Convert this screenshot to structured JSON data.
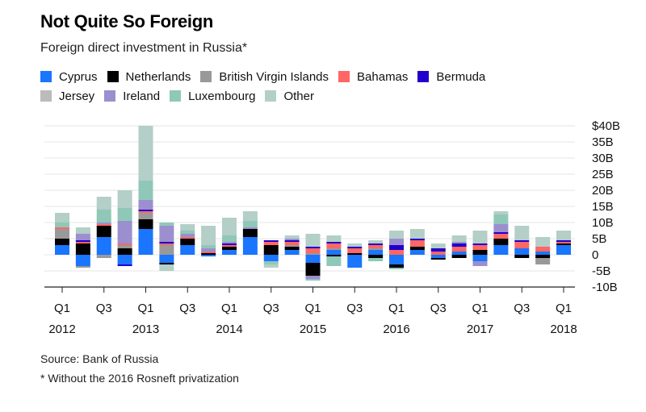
{
  "title": "Not Quite So Foreign",
  "subtitle": "Foreign direct investment in Russia*",
  "footer": {
    "source": "Source: Bank of Russia",
    "note": "* Without the 2016 Rosneft privatization"
  },
  "chart_data": {
    "type": "bar",
    "stacked": true,
    "title": "Not Quite So Foreign",
    "subtitle": "Foreign direct investment in Russia*",
    "xlabel": "",
    "ylabel": "",
    "ylim": [
      -10,
      40
    ],
    "yticks": [
      40,
      35,
      30,
      25,
      20,
      15,
      10,
      5,
      0,
      -5,
      -10
    ],
    "ytick_labels": [
      "$40B",
      "35B",
      "30B",
      "25B",
      "20B",
      "15B",
      "10B",
      "5B",
      "0",
      "-5B",
      "-10B"
    ],
    "grid": true,
    "legend_position": "top",
    "categories": [
      "Q1 2012",
      "Q2 2012",
      "Q3 2012",
      "Q4 2012",
      "Q1 2013",
      "Q2 2013",
      "Q3 2013",
      "Q4 2013",
      "Q1 2014",
      "Q2 2014",
      "Q3 2014",
      "Q4 2014",
      "Q1 2015",
      "Q2 2015",
      "Q3 2015",
      "Q4 2015",
      "Q1 2016",
      "Q2 2016",
      "Q3 2016",
      "Q4 2016",
      "Q1 2017",
      "Q2 2017",
      "Q3 2017",
      "Q4 2017",
      "Q1 2018"
    ],
    "xtick_labels": [
      {
        "index": 0,
        "quarter": "Q1",
        "year": "2012"
      },
      {
        "index": 2,
        "quarter": "Q3",
        "year": ""
      },
      {
        "index": 4,
        "quarter": "Q1",
        "year": "2013"
      },
      {
        "index": 6,
        "quarter": "Q3",
        "year": ""
      },
      {
        "index": 8,
        "quarter": "Q1",
        "year": "2014"
      },
      {
        "index": 10,
        "quarter": "Q3",
        "year": ""
      },
      {
        "index": 12,
        "quarter": "Q1",
        "year": "2015"
      },
      {
        "index": 14,
        "quarter": "Q3",
        "year": ""
      },
      {
        "index": 16,
        "quarter": "Q1",
        "year": "2016"
      },
      {
        "index": 18,
        "quarter": "Q3",
        "year": ""
      },
      {
        "index": 20,
        "quarter": "Q1",
        "year": "2017"
      },
      {
        "index": 22,
        "quarter": "Q3",
        "year": ""
      },
      {
        "index": 24,
        "quarter": "Q1",
        "year": "2018"
      }
    ],
    "series": [
      {
        "name": "Cyprus",
        "color": "#1a75ff",
        "values": [
          3,
          -3.5,
          5.5,
          -3,
          8,
          -2.5,
          3,
          -0.5,
          1.5,
          5.5,
          -2,
          1.5,
          -2.5,
          1.5,
          -4,
          1.5,
          -3,
          1.5,
          -1,
          1,
          -2,
          3,
          2,
          1,
          3
        ]
      },
      {
        "name": "Netherlands",
        "color": "#000000",
        "values": [
          2,
          3.5,
          3.5,
          2,
          3,
          -0.5,
          2,
          0.5,
          1,
          2.5,
          3,
          1,
          -4,
          -0.5,
          0.5,
          -1,
          -1,
          1,
          -0.5,
          -1,
          1.5,
          2,
          -1,
          -1,
          0.5
        ]
      },
      {
        "name": "British Virgin Islands",
        "color": "#999999",
        "values": [
          3,
          -0.5,
          -1,
          1,
          2,
          3,
          0,
          0,
          0,
          0,
          0,
          0.5,
          0.5,
          0.5,
          0,
          0.5,
          0,
          0,
          0,
          0,
          0,
          0,
          0,
          -2,
          0
        ]
      },
      {
        "name": "Bahamas",
        "color": "#ff6666",
        "values": [
          0.5,
          0.5,
          0.5,
          0.5,
          0.5,
          0.5,
          0.5,
          0.5,
          0.5,
          0,
          1,
          1,
          1.5,
          1.5,
          1.5,
          1,
          1.5,
          2,
          1,
          1.5,
          1.5,
          1.5,
          2,
          1.5,
          0.5
        ]
      },
      {
        "name": "Bermuda",
        "color": "#2200cc",
        "values": [
          0,
          0.5,
          0,
          -0.5,
          0.5,
          0.5,
          0,
          0,
          0.5,
          0,
          0.5,
          0.5,
          0.5,
          0.5,
          0.5,
          0.5,
          1.5,
          0.5,
          1,
          1,
          0.5,
          0.5,
          0.5,
          0,
          0.5
        ]
      },
      {
        "name": "Jersey",
        "color": "#bbbbbb",
        "values": [
          0,
          0,
          0,
          0,
          0,
          0,
          0,
          0,
          0,
          0,
          0,
          0,
          0,
          0,
          0,
          0,
          0,
          0,
          0,
          0,
          0,
          0,
          0,
          0,
          0
        ]
      },
      {
        "name": "Ireland",
        "color": "#9b8fd0",
        "values": [
          0,
          2,
          0.5,
          7,
          3,
          5,
          1,
          1,
          0.5,
          0.5,
          0,
          0.5,
          -1,
          0,
          0,
          0,
          2,
          0,
          0,
          0.5,
          -1.5,
          2.5,
          0,
          0,
          0
        ]
      },
      {
        "name": "Luxembourg",
        "color": "#8fc8b8",
        "values": [
          1.5,
          0,
          4,
          4,
          6,
          1,
          1,
          1,
          2,
          2,
          -1,
          0,
          -0.5,
          -3,
          0,
          -1,
          -0.5,
          0,
          0,
          0,
          0,
          3,
          0,
          0,
          0
        ]
      },
      {
        "name": "Other",
        "color": "#b3cfc7",
        "values": [
          3,
          2,
          4,
          5.5,
          17,
          -2,
          2,
          6,
          5.5,
          3,
          -1,
          1,
          4,
          2,
          1,
          1,
          2.5,
          3,
          1.5,
          2,
          4,
          1,
          4.5,
          3,
          3
        ]
      }
    ]
  }
}
